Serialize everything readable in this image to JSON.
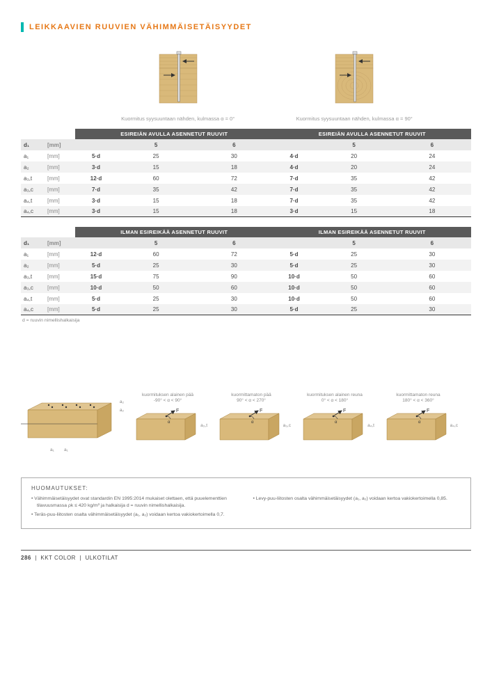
{
  "title": "LEIKKAAVIEN RUUVIEN VÄHIMMÄISETÄISYYDET",
  "topDiagrams": {
    "left_caption": "Kuormitus syysuuntaan nähden, kulmassa α = 0°",
    "right_caption": "Kuormitus syysuuntaan nähden, kulmassa α = 90°"
  },
  "tableA": {
    "header_left": "ESIREIÄN AVULLA ASENNETUT RUUVIT",
    "header_right": "ESIREIÄN AVULLA ASENNETUT RUUVIT",
    "d_row": {
      "sym": "d₁",
      "unit": "[mm]",
      "c2l": "5",
      "c3l": "6",
      "c2r": "5",
      "c3r": "6"
    },
    "rows": [
      {
        "sym": "a₁",
        "unit": "[mm]",
        "c1l": "5·d",
        "c2l": "25",
        "c3l": "30",
        "c1r": "4·d",
        "c2r": "20",
        "c3r": "24"
      },
      {
        "sym": "a₂",
        "unit": "[mm]",
        "c1l": "3·d",
        "c2l": "15",
        "c3l": "18",
        "c1r": "4·d",
        "c2r": "20",
        "c3r": "24"
      },
      {
        "sym": "a₃,t",
        "unit": "[mm]",
        "c1l": "12·d",
        "c2l": "60",
        "c3l": "72",
        "c1r": "7·d",
        "c2r": "35",
        "c3r": "42"
      },
      {
        "sym": "a₃,c",
        "unit": "[mm]",
        "c1l": "7·d",
        "c2l": "35",
        "c3l": "42",
        "c1r": "7·d",
        "c2r": "35",
        "c3r": "42"
      },
      {
        "sym": "a₄,t",
        "unit": "[mm]",
        "c1l": "3·d",
        "c2l": "15",
        "c3l": "18",
        "c1r": "7·d",
        "c2r": "35",
        "c3r": "42"
      },
      {
        "sym": "a₄,c",
        "unit": "[mm]",
        "c1l": "3·d",
        "c2l": "15",
        "c3l": "18",
        "c1r": "3·d",
        "c2r": "15",
        "c3r": "18"
      }
    ]
  },
  "tableB": {
    "header_left": "ILMAN ESIREIKÄÄ ASENNETUT RUUVIT",
    "header_right": "ILMAN ESIREIKÄÄ ASENNETUT RUUVIT",
    "d_row": {
      "sym": "d₁",
      "unit": "[mm]",
      "c2l": "5",
      "c3l": "6",
      "c2r": "5",
      "c3r": "6"
    },
    "rows": [
      {
        "sym": "a₁",
        "unit": "[mm]",
        "c1l": "12·d",
        "c2l": "60",
        "c3l": "72",
        "c1r": "5·d",
        "c2r": "25",
        "c3r": "30"
      },
      {
        "sym": "a₂",
        "unit": "[mm]",
        "c1l": "5·d",
        "c2l": "25",
        "c3l": "30",
        "c1r": "5·d",
        "c2r": "25",
        "c3r": "30"
      },
      {
        "sym": "a₃,t",
        "unit": "[mm]",
        "c1l": "15·d",
        "c2l": "75",
        "c3l": "90",
        "c1r": "10·d",
        "c2r": "50",
        "c3r": "60"
      },
      {
        "sym": "a₃,c",
        "unit": "[mm]",
        "c1l": "10·d",
        "c2l": "50",
        "c3l": "60",
        "c1r": "10·d",
        "c2r": "50",
        "c3r": "60"
      },
      {
        "sym": "a₄,t",
        "unit": "[mm]",
        "c1l": "5·d",
        "c2l": "25",
        "c3l": "30",
        "c1r": "10·d",
        "c2r": "50",
        "c3r": "60"
      },
      {
        "sym": "a₄,c",
        "unit": "[mm]",
        "c1l": "5·d",
        "c2l": "25",
        "c3l": "30",
        "c1r": "5·d",
        "c2r": "25",
        "c3r": "30"
      }
    ]
  },
  "note_d": "d = ruuvin nimellishalkaisija",
  "diag2": [
    {
      "cap": "kuormituksen alainen pää\n-90° < α < 90°",
      "lbl": "a₃,t"
    },
    {
      "cap": "kuormittamaton pää\n90° < α < 270°",
      "lbl": "a₃,c"
    },
    {
      "cap": "kuormituksen alainen reuna\n0° < α < 180°",
      "lbl": "a₄,t"
    },
    {
      "cap": "kuormittamaton reuna\n180° < α < 360°",
      "lbl": "a₄,c"
    }
  ],
  "notes": {
    "title": "HUOMAUTUKSET:",
    "left": [
      "Vähimmäisetäisyydet ovat standardin EN 1995:2014 mukaiset olettaen, että puuelementtien tilavuusmassa ρk ≤ 420 kg/m³ ja halkaisija d = ruuvin nimellishalkaisija.",
      "Teräs-puu-liitosten osalta vähimmäisetäisyydet (a₁, a₂) voidaan kertoa vakiokertoimella 0,7."
    ],
    "right": [
      "Levy-puu-liitosten osalta vähimmäisetäisyydet (a₁, a₂) voidaan kertoa vakiokertoimella 0,85."
    ]
  },
  "footer": {
    "page": "286",
    "mid": "KKT COLOR",
    "section": "ULKOTILAT"
  }
}
